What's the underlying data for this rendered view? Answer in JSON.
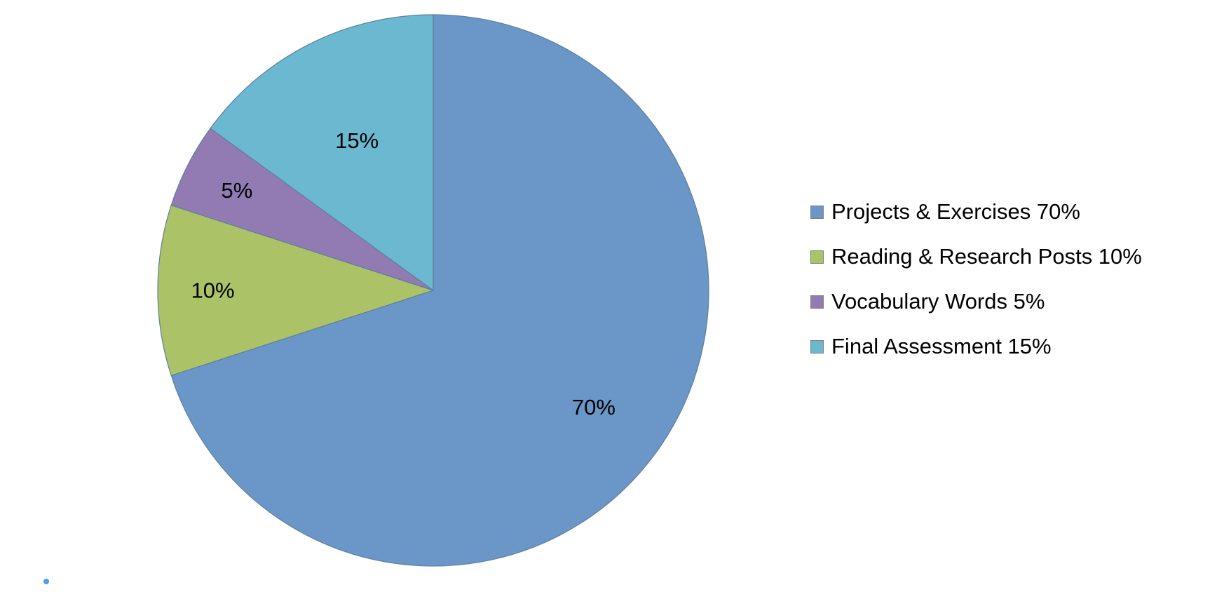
{
  "chart_data": {
    "type": "pie",
    "title": "",
    "slices": [
      {
        "label": "Projects & Exercises",
        "value": 70,
        "data_label": "70%",
        "legend": "Projects & Exercises 70%",
        "color": "#6a96c8"
      },
      {
        "label": "Reading & Research Posts",
        "value": 10,
        "data_label": "10%",
        "legend": "Reading & Research Posts 10%",
        "color": "#abc266"
      },
      {
        "label": "Vocabulary Words",
        "value": 5,
        "data_label": "5%",
        "legend": "Vocabulary Words 5%",
        "color": "#917bb2"
      },
      {
        "label": "Final Assessment",
        "value": 15,
        "data_label": "15%",
        "legend": "Final Assessment 15%",
        "color": "#6ab9d1"
      }
    ],
    "start_angle": "12 o'clock",
    "direction": "clockwise",
    "legend_position": "right"
  },
  "colors": {
    "background": "#ffffff",
    "slice_border": "#5f7f9f",
    "corner_dot": "#4a9fe8"
  }
}
